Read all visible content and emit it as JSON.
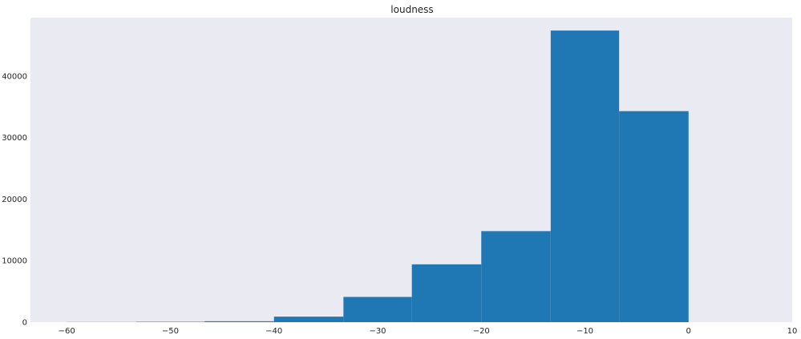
{
  "chart_data": {
    "type": "bar",
    "title": "loudness",
    "xlabel": "",
    "ylabel": "",
    "xlim": [
      -63.5,
      10
    ],
    "ylim": [
      0,
      49500
    ],
    "x_ticks": [
      -60,
      -50,
      -40,
      -30,
      -20,
      -10,
      0,
      10
    ],
    "x_tick_labels": [
      "−60",
      "−50",
      "−40",
      "−30",
      "−20",
      "−10",
      "0",
      "10"
    ],
    "y_ticks": [
      0,
      10000,
      20000,
      30000,
      40000
    ],
    "y_tick_labels": [
      "0",
      "10000",
      "20000",
      "30000",
      "40000"
    ],
    "grid": false,
    "bar_color": "#1f77b4",
    "background_color": "#eaeaf2",
    "bins": [
      {
        "x0": -60.0,
        "x1": -53.3,
        "count": 20
      },
      {
        "x0": -53.3,
        "x1": -46.7,
        "count": 60
      },
      {
        "x0": -46.7,
        "x1": -40.0,
        "count": 150
      },
      {
        "x0": -40.0,
        "x1": -33.3,
        "count": 900
      },
      {
        "x0": -33.3,
        "x1": -26.7,
        "count": 4100
      },
      {
        "x0": -26.7,
        "x1": -20.0,
        "count": 9400
      },
      {
        "x0": -20.0,
        "x1": -13.3,
        "count": 14800
      },
      {
        "x0": -13.3,
        "x1": -6.7,
        "count": 47400
      },
      {
        "x0": -6.7,
        "x1": 0.0,
        "count": 34300
      }
    ]
  }
}
